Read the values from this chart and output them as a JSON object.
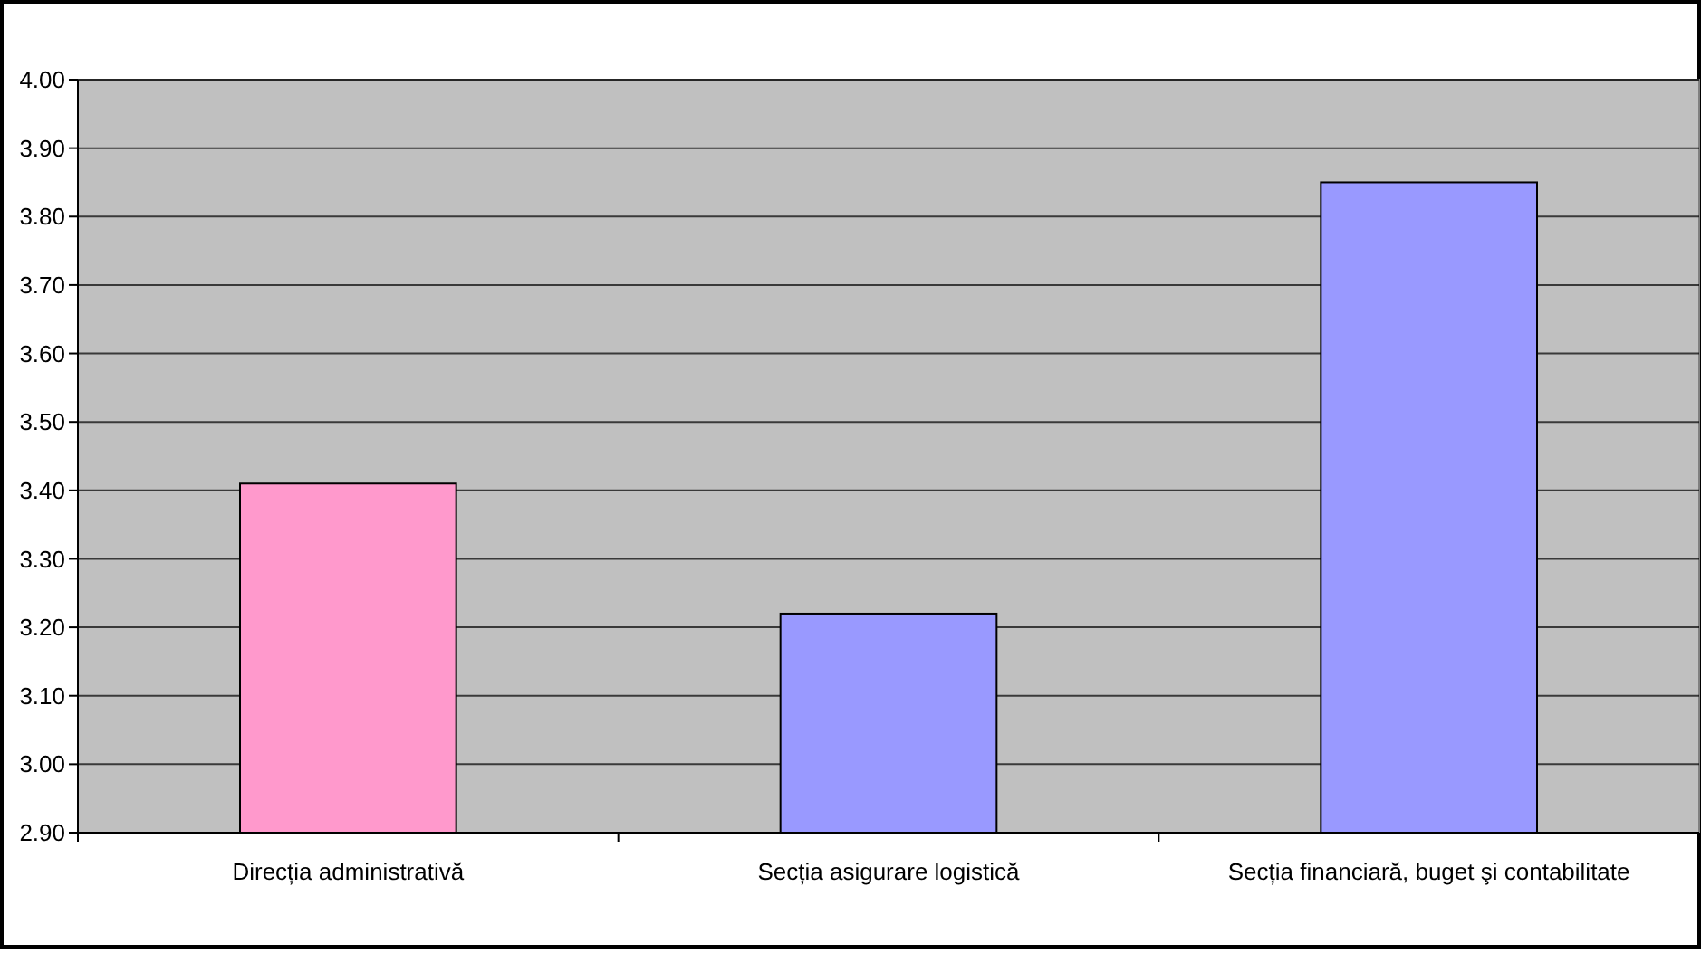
{
  "chart_data": {
    "type": "bar",
    "categories": [
      "Direcția administrativă",
      "Secția asigurare logistică",
      "Secția financiară, buget şi contabilitate"
    ],
    "values": [
      3.41,
      3.22,
      3.85
    ],
    "colors": [
      "#ff99cc",
      "#9999ff",
      "#9999ff"
    ],
    "ylim": [
      2.9,
      4.0
    ],
    "yticks": [
      {
        "value": 2.9,
        "label": "2.90"
      },
      {
        "value": 3.0,
        "label": "3.00"
      },
      {
        "value": 3.1,
        "label": "3.10"
      },
      {
        "value": 3.2,
        "label": "3.20"
      },
      {
        "value": 3.3,
        "label": "3.30"
      },
      {
        "value": 3.4,
        "label": "3.40"
      },
      {
        "value": 3.5,
        "label": "3.50"
      },
      {
        "value": 3.6,
        "label": "3.60"
      },
      {
        "value": 3.7,
        "label": "3.70"
      },
      {
        "value": 3.8,
        "label": "3.80"
      },
      {
        "value": 3.9,
        "label": "3.90"
      },
      {
        "value": 4.0,
        "label": "4.00"
      }
    ],
    "grid": "y"
  }
}
